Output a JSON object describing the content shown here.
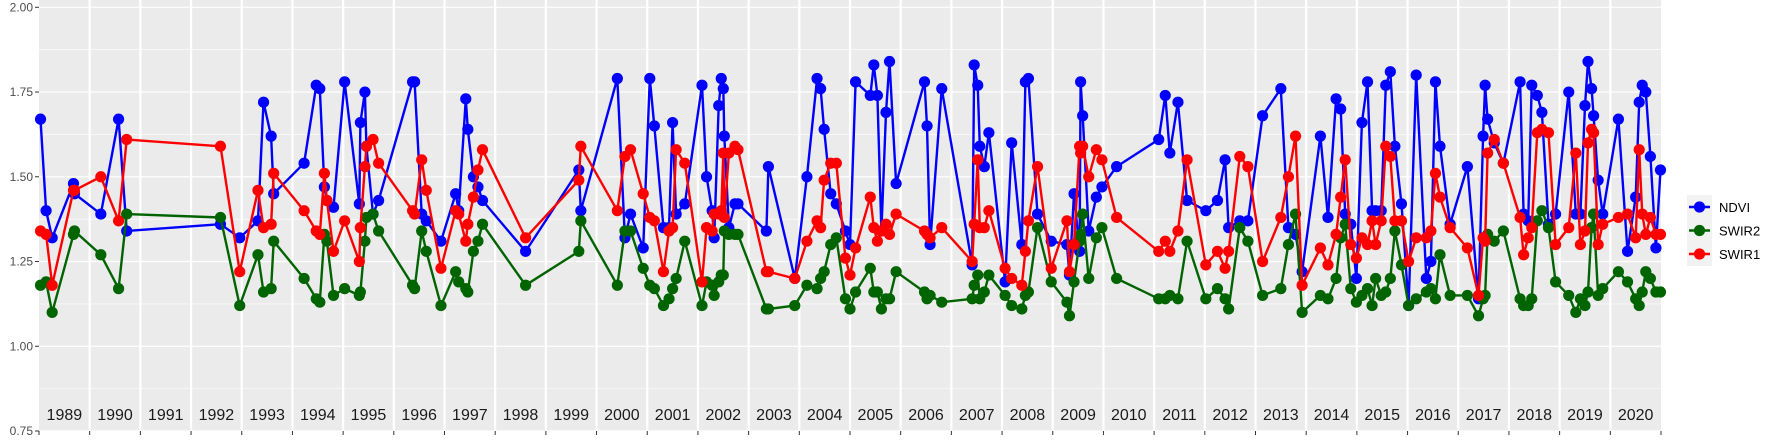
{
  "chart_data": {
    "type": "line",
    "title": "",
    "xlabel": "",
    "ylabel": "",
    "xlim": [
      1989,
      2021
    ],
    "ylim": [
      0.75,
      2.02
    ],
    "grid": true,
    "y_ticks": [
      "0.75",
      "1.00",
      "1.25",
      "1.50",
      "1.75",
      "2.00"
    ],
    "y_tick_values": [
      0.75,
      1.0,
      1.25,
      1.5,
      1.75,
      2.0
    ],
    "year_labels": [
      "1989",
      "1990",
      "1991",
      "1992",
      "1993",
      "1994",
      "1995",
      "1996",
      "1997",
      "1998",
      "1999",
      "2000",
      "2001",
      "2002",
      "2003",
      "2004",
      "2005",
      "2006",
      "2007",
      "2008",
      "2009",
      "2010",
      "2011",
      "2012",
      "2013",
      "2014",
      "2015",
      "2016",
      "2017",
      "2018",
      "2019",
      "2020"
    ],
    "legend_position": "right",
    "x": [
      1989.03,
      1989.14,
      1989.26,
      1989.68,
      1989.7,
      1990.22,
      1990.57,
      1990.73,
      1992.58,
      1992.96,
      1993.32,
      1993.43,
      1993.58,
      1993.63,
      1994.23,
      1994.47,
      1994.54,
      1994.63,
      1994.68,
      1994.81,
      1995.03,
      1995.32,
      1995.34,
      1995.43,
      1995.46,
      1995.59,
      1995.7,
      1996.37,
      1996.41,
      1996.55,
      1996.64,
      1996.93,
      1997.22,
      1997.28,
      1997.42,
      1997.46,
      1997.57,
      1997.66,
      1997.75,
      1998.6,
      1999.65,
      1999.69,
      2000.41,
      2000.56,
      2000.67,
      2000.92,
      2001.05,
      2001.14,
      2001.32,
      2001.43,
      2001.5,
      2001.57,
      2001.74,
      2002.08,
      2002.17,
      2002.28,
      2002.32,
      2002.41,
      2002.46,
      2002.5,
      2002.52,
      2002.61,
      2002.73,
      2002.79,
      2003.35,
      2003.39,
      2003.91,
      2004.15,
      2004.35,
      2004.42,
      2004.49,
      2004.62,
      2004.73,
      2004.91,
      2005.0,
      2005.11,
      2005.4,
      2005.47,
      2005.54,
      2005.62,
      2005.71,
      2005.78,
      2005.91,
      2006.47,
      2006.52,
      2006.58,
      2006.81,
      2007.41,
      2007.45,
      2007.52,
      2007.56,
      2007.65,
      2007.74,
      2008.06,
      2008.19,
      2008.39,
      2008.46,
      2008.52,
      2008.7,
      2008.97,
      2009.28,
      2009.33,
      2009.42,
      2009.53,
      2009.55,
      2009.59,
      2009.71,
      2009.86,
      2009.97,
      2010.26,
      2011.09,
      2011.22,
      2011.31,
      2011.47,
      2011.65,
      2012.02,
      2012.25,
      2012.4,
      2012.47,
      2012.69,
      2012.85,
      2013.14,
      2013.5,
      2013.65,
      2013.79,
      2013.92,
      2014.28,
      2014.43,
      2014.59,
      2014.68,
      2014.77,
      2014.88,
      2014.99,
      2015.1,
      2015.21,
      2015.3,
      2015.37,
      2015.48,
      2015.57,
      2015.66,
      2015.75,
      2015.88,
      2016.02,
      2016.17,
      2016.37,
      2016.46,
      2016.55,
      2016.64,
      2016.84,
      2017.18,
      2017.4,
      2017.49,
      2017.53,
      2017.58,
      2017.71,
      2017.89,
      2018.22,
      2018.29,
      2018.38,
      2018.45,
      2018.56,
      2018.65,
      2018.78,
      2018.92,
      2019.18,
      2019.32,
      2019.41,
      2019.5,
      2019.56,
      2019.63,
      2019.67,
      2019.76,
      2019.85,
      2020.16,
      2020.34,
      2020.5,
      2020.57,
      2020.63,
      2020.7,
      2020.79,
      2020.9,
      2020.99
    ],
    "series": [
      {
        "name": "NDVI",
        "color": "#0000ff",
        "values": [
          1.67,
          1.4,
          1.32,
          1.48,
          1.45,
          1.39,
          1.67,
          1.34,
          1.36,
          1.32,
          1.37,
          1.72,
          1.62,
          1.45,
          1.54,
          1.77,
          1.76,
          1.47,
          1.43,
          1.41,
          1.78,
          1.42,
          1.66,
          1.75,
          1.59,
          1.39,
          1.43,
          1.78,
          1.78,
          1.39,
          1.37,
          1.31,
          1.45,
          1.4,
          1.73,
          1.64,
          1.5,
          1.47,
          1.43,
          1.28,
          1.52,
          1.4,
          1.79,
          1.32,
          1.39,
          1.29,
          1.79,
          1.65,
          1.35,
          1.35,
          1.66,
          1.39,
          1.42,
          1.77,
          1.5,
          1.4,
          1.32,
          1.71,
          1.79,
          1.76,
          1.62,
          1.35,
          1.42,
          1.42,
          1.34,
          1.53,
          1.2,
          1.5,
          1.79,
          1.76,
          1.64,
          1.45,
          1.42,
          1.34,
          1.3,
          1.78,
          1.74,
          1.83,
          1.74,
          1.34,
          1.69,
          1.84,
          1.48,
          1.78,
          1.65,
          1.3,
          1.76,
          1.24,
          1.83,
          1.77,
          1.59,
          1.53,
          1.63,
          1.19,
          1.6,
          1.3,
          1.78,
          1.79,
          1.39,
          1.31,
          1.3,
          1.21,
          1.45,
          1.28,
          1.78,
          1.68,
          1.34,
          1.44,
          1.47,
          1.53,
          1.61,
          1.74,
          1.57,
          1.72,
          1.43,
          1.4,
          1.43,
          1.55,
          1.35,
          1.37,
          1.37,
          1.68,
          1.76,
          1.35,
          1.33,
          1.22,
          1.62,
          1.38,
          1.73,
          1.7,
          1.39,
          1.36,
          1.2,
          1.66,
          1.78,
          1.4,
          1.4,
          1.4,
          1.77,
          1.81,
          1.59,
          1.42,
          1.12,
          1.8,
          1.2,
          1.25,
          1.78,
          1.59,
          1.36,
          1.53,
          1.14,
          1.62,
          1.77,
          1.67,
          1.6,
          1.54,
          1.78,
          1.39,
          1.37,
          1.77,
          1.74,
          1.69,
          1.36,
          1.39,
          1.75,
          1.39,
          1.39,
          1.71,
          1.84,
          1.76,
          1.68,
          1.49,
          1.39,
          1.67,
          1.28,
          1.44,
          1.72,
          1.77,
          1.75,
          1.56,
          1.29,
          1.52
        ]
      },
      {
        "name": "SWIR2",
        "color": "#006400",
        "values": [
          1.18,
          1.19,
          1.1,
          1.33,
          1.34,
          1.27,
          1.17,
          1.39,
          1.38,
          1.12,
          1.27,
          1.16,
          1.17,
          1.31,
          1.2,
          1.14,
          1.13,
          1.33,
          1.31,
          1.15,
          1.17,
          1.15,
          1.16,
          1.31,
          1.38,
          1.39,
          1.34,
          1.18,
          1.17,
          1.34,
          1.28,
          1.12,
          1.22,
          1.19,
          1.17,
          1.16,
          1.28,
          1.31,
          1.36,
          1.18,
          1.28,
          1.37,
          1.18,
          1.34,
          1.34,
          1.23,
          1.18,
          1.17,
          1.12,
          1.14,
          1.17,
          1.2,
          1.31,
          1.12,
          1.19,
          1.18,
          1.15,
          1.19,
          1.21,
          1.21,
          1.34,
          1.33,
          1.33,
          1.33,
          1.11,
          1.11,
          1.12,
          1.18,
          1.17,
          1.2,
          1.22,
          1.3,
          1.32,
          1.14,
          1.11,
          1.16,
          1.23,
          1.16,
          1.16,
          1.11,
          1.14,
          1.14,
          1.22,
          1.16,
          1.14,
          1.15,
          1.13,
          1.14,
          1.18,
          1.21,
          1.14,
          1.16,
          1.21,
          1.15,
          1.12,
          1.11,
          1.15,
          1.16,
          1.35,
          1.19,
          1.13,
          1.09,
          1.19,
          1.31,
          1.33,
          1.39,
          1.2,
          1.32,
          1.35,
          1.2,
          1.14,
          1.14,
          1.15,
          1.14,
          1.31,
          1.14,
          1.17,
          1.14,
          1.11,
          1.35,
          1.31,
          1.15,
          1.17,
          1.3,
          1.39,
          1.1,
          1.15,
          1.14,
          1.2,
          1.32,
          1.36,
          1.17,
          1.13,
          1.15,
          1.17,
          1.12,
          1.2,
          1.15,
          1.16,
          1.2,
          1.34,
          1.24,
          1.12,
          1.14,
          1.16,
          1.17,
          1.14,
          1.27,
          1.15,
          1.15,
          1.09,
          1.14,
          1.15,
          1.33,
          1.31,
          1.34,
          1.14,
          1.12,
          1.12,
          1.14,
          1.37,
          1.4,
          1.35,
          1.19,
          1.15,
          1.1,
          1.14,
          1.12,
          1.16,
          1.35,
          1.39,
          1.15,
          1.17,
          1.22,
          1.19,
          1.14,
          1.12,
          1.16,
          1.22,
          1.2,
          1.16,
          1.16
        ]
      },
      {
        "name": "SWIR1",
        "color": "#ff0000",
        "values": [
          1.34,
          1.33,
          1.18,
          1.46,
          1.46,
          1.5,
          1.37,
          1.61,
          1.59,
          1.22,
          1.46,
          1.35,
          1.36,
          1.51,
          1.4,
          1.34,
          1.33,
          1.51,
          1.43,
          1.28,
          1.37,
          1.25,
          1.35,
          1.53,
          1.59,
          1.61,
          1.54,
          1.4,
          1.39,
          1.55,
          1.46,
          1.23,
          1.4,
          1.39,
          1.31,
          1.36,
          1.44,
          1.52,
          1.58,
          1.32,
          1.49,
          1.59,
          1.4,
          1.56,
          1.58,
          1.45,
          1.38,
          1.37,
          1.22,
          1.34,
          1.35,
          1.58,
          1.54,
          1.19,
          1.35,
          1.34,
          1.39,
          1.39,
          1.4,
          1.57,
          1.38,
          1.57,
          1.59,
          1.58,
          1.22,
          1.22,
          1.2,
          1.31,
          1.37,
          1.35,
          1.49,
          1.54,
          1.54,
          1.26,
          1.21,
          1.29,
          1.44,
          1.35,
          1.31,
          1.34,
          1.36,
          1.33,
          1.39,
          1.34,
          1.33,
          1.32,
          1.35,
          1.25,
          1.36,
          1.55,
          1.35,
          1.35,
          1.4,
          1.23,
          1.2,
          1.18,
          1.28,
          1.37,
          1.53,
          1.23,
          1.37,
          1.22,
          1.3,
          1.59,
          1.57,
          1.59,
          1.5,
          1.58,
          1.55,
          1.38,
          1.28,
          1.31,
          1.28,
          1.34,
          1.55,
          1.24,
          1.28,
          1.23,
          1.28,
          1.56,
          1.53,
          1.25,
          1.38,
          1.5,
          1.62,
          1.18,
          1.29,
          1.24,
          1.33,
          1.44,
          1.55,
          1.3,
          1.26,
          1.32,
          1.3,
          1.37,
          1.3,
          1.37,
          1.59,
          1.56,
          1.37,
          1.37,
          1.25,
          1.32,
          1.32,
          1.34,
          1.51,
          1.44,
          1.35,
          1.29,
          1.15,
          1.32,
          1.31,
          1.57,
          1.61,
          1.54,
          1.38,
          1.27,
          1.32,
          1.35,
          1.63,
          1.64,
          1.63,
          1.3,
          1.35,
          1.57,
          1.3,
          1.34,
          1.6,
          1.64,
          1.63,
          1.3,
          1.36,
          1.38,
          1.39,
          1.32,
          1.58,
          1.39,
          1.33,
          1.38,
          1.33,
          1.33
        ]
      }
    ]
  }
}
